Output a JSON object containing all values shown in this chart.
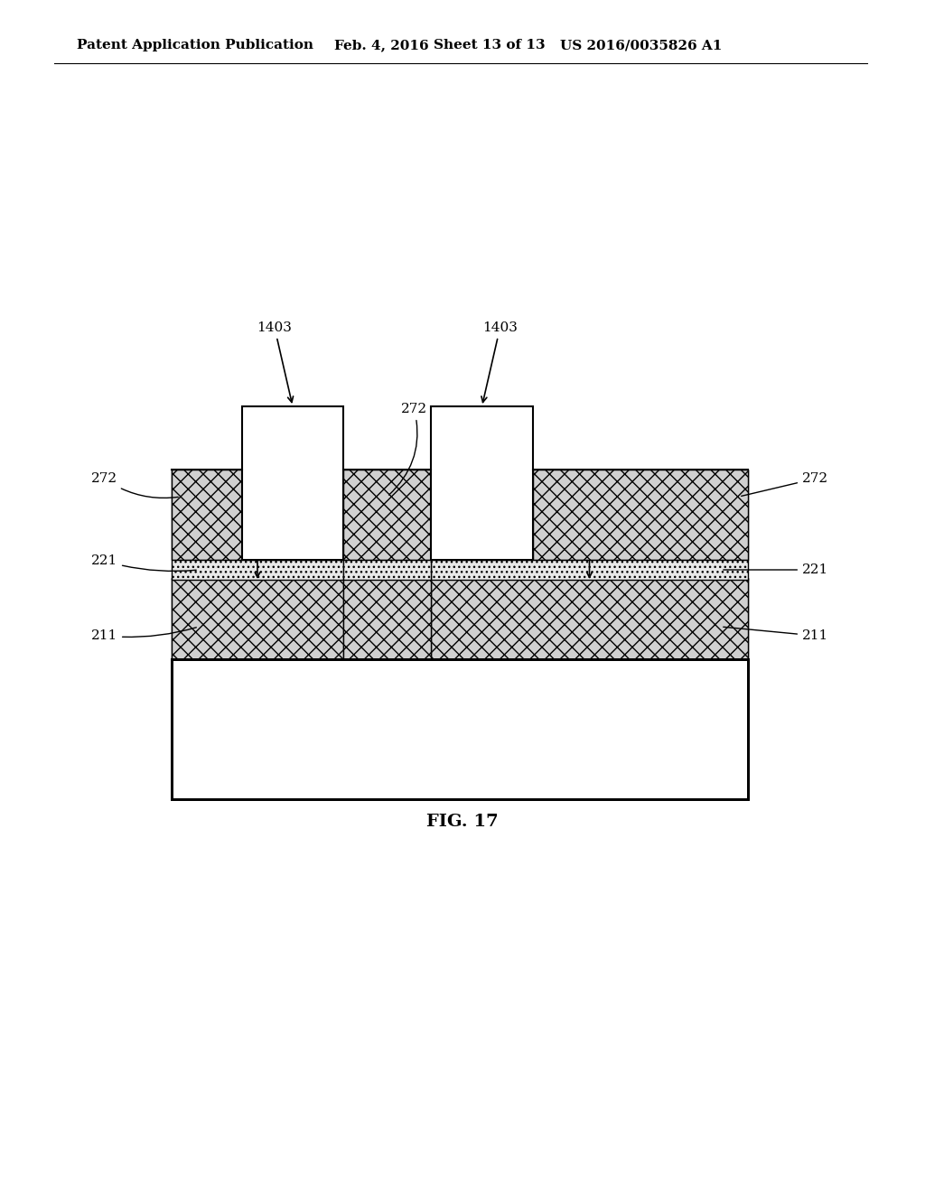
{
  "title_line1": "Patent Application Publication",
  "title_line2": "Feb. 4, 2016",
  "title_line3": "Sheet 13 of 13",
  "title_line4": "US 2016/0035826 A1",
  "fig_label": "FIG. 17",
  "bg_color": "#ffffff",
  "border_color": "#000000",
  "crosshatch_color": "#c8c8c8",
  "pillar_color": "#ffffff",
  "dot_layer_color": "#e0e0e0",
  "substrate_color": "#ffffff",
  "labels": {
    "1403_left": "1403",
    "1403_right": "1403",
    "272_top": "272",
    "272_left": "272",
    "272_right": "272",
    "221_left": "221",
    "221_right": "221",
    "211_left": "211",
    "211_right": "211"
  }
}
